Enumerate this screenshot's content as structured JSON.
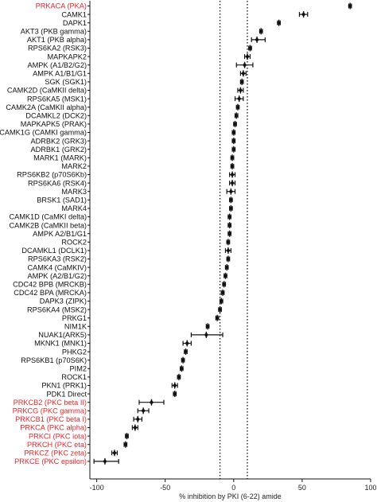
{
  "chart_data": {
    "type": "scatter",
    "title": "",
    "xlabel": "% inhibition by PKI (6-22) amide",
    "ylabel": "",
    "xlim": [
      -105,
      100
    ],
    "xticks": [
      -100,
      -50,
      0,
      50,
      100
    ],
    "xtick_labels": [
      "-100",
      "-50",
      "0",
      "50",
      "100"
    ],
    "reference_lines_x": [
      -10,
      10
    ],
    "reference_line_style": "dotted",
    "highlight_color": "#e8262b",
    "default_color": "#111111",
    "points": [
      {
        "label": "PRKACA (PKA)",
        "value": 85,
        "low": 84,
        "high": 86,
        "highlight": true
      },
      {
        "label": "CAMK1",
        "value": 51,
        "low": 48,
        "high": 54,
        "highlight": false
      },
      {
        "label": "DAPK1",
        "value": 33,
        "low": 32,
        "high": 34,
        "highlight": false
      },
      {
        "label": "AKT3 (PKB gamma)",
        "value": 20,
        "low": 19,
        "high": 21,
        "highlight": false
      },
      {
        "label": "AKT1 (PKB alpha)",
        "value": 17,
        "low": 13,
        "high": 23,
        "highlight": false
      },
      {
        "label": "RPS6KA2 (RSK3)",
        "value": 12,
        "low": 11,
        "high": 13,
        "highlight": false
      },
      {
        "label": "MAPKAPK2",
        "value": 10,
        "low": 8,
        "high": 12,
        "highlight": false
      },
      {
        "label": "AMPK (A1/B2/G2)",
        "value": 8,
        "low": 2,
        "high": 14,
        "highlight": false
      },
      {
        "label": "AMPK A1/B1/G1",
        "value": 7,
        "low": 5,
        "high": 9,
        "highlight": false
      },
      {
        "label": "SGK (SGK1)",
        "value": 6,
        "low": 5,
        "high": 7,
        "highlight": false
      },
      {
        "label": "CAMK2D (CaMKII delta)",
        "value": 5,
        "low": 3,
        "high": 7,
        "highlight": false
      },
      {
        "label": "RPS6KA5 (MSK1)",
        "value": 4,
        "low": 1,
        "high": 7,
        "highlight": false
      },
      {
        "label": "CAMK2A (CaMKII alpha)",
        "value": 3,
        "low": 2,
        "high": 4,
        "highlight": false
      },
      {
        "label": "DCAMKL2 (DCK2)",
        "value": 2,
        "low": 1,
        "high": 3,
        "highlight": false
      },
      {
        "label": "MAPKAPK5 (PRAK)",
        "value": 1,
        "low": 0,
        "high": 2,
        "highlight": false
      },
      {
        "label": "CAMK1G (CAMKI gamma)",
        "value": 0,
        "low": -1,
        "high": 1,
        "highlight": false
      },
      {
        "label": "ADRBK2 (GRK3)",
        "value": 0,
        "low": -1,
        "high": 1,
        "highlight": false
      },
      {
        "label": "ADRBK1 (GRK2)",
        "value": 0,
        "low": -1,
        "high": 1,
        "highlight": false
      },
      {
        "label": "MARK1 (MARK)",
        "value": -1,
        "low": -2,
        "high": 0,
        "highlight": false
      },
      {
        "label": "MARK2",
        "value": -1,
        "low": -2,
        "high": 0,
        "highlight": false
      },
      {
        "label": "RPS6KB2 (p70S6Kb)",
        "value": -1,
        "low": -3,
        "high": 1,
        "highlight": false
      },
      {
        "label": "RPS6KA6 (RSK4)",
        "value": -1,
        "low": -3,
        "high": 1,
        "highlight": false
      },
      {
        "label": "MARK3",
        "value": -2,
        "low": -5,
        "high": 1,
        "highlight": false
      },
      {
        "label": "BRSK1 (SAD1)",
        "value": -2,
        "low": -3,
        "high": -1,
        "highlight": false
      },
      {
        "label": "MARK4",
        "value": -2,
        "low": -3,
        "high": -1,
        "highlight": false
      },
      {
        "label": "CAMK1D (CaMKI delta)",
        "value": -3,
        "low": -4,
        "high": -2,
        "highlight": false
      },
      {
        "label": "CAMK2B (CaMKII beta)",
        "value": -3,
        "low": -4,
        "high": -2,
        "highlight": false
      },
      {
        "label": "AMPK A2/B1/G1",
        "value": -3,
        "low": -4,
        "high": -2,
        "highlight": false
      },
      {
        "label": "ROCK2",
        "value": -4,
        "low": -5,
        "high": -3,
        "highlight": false
      },
      {
        "label": "DCAMKL1 (DCLK1)",
        "value": -4,
        "low": -6,
        "high": -2,
        "highlight": false
      },
      {
        "label": "RPS6KA3 (RSK2)",
        "value": -4,
        "low": -5,
        "high": -3,
        "highlight": false
      },
      {
        "label": "CAMK4 (CaMKIV)",
        "value": -5,
        "low": -6,
        "high": -4,
        "highlight": false
      },
      {
        "label": "AMPK (A2/B1/G2)",
        "value": -6,
        "low": -7,
        "high": -5,
        "highlight": false
      },
      {
        "label": "CDC42 BPB (MRCKB)",
        "value": -7,
        "low": -8,
        "high": -6,
        "highlight": false
      },
      {
        "label": "CDC42 BPA (MRCKA)",
        "value": -8,
        "low": -9,
        "high": -7,
        "highlight": false
      },
      {
        "label": "DAPK3 (ZIPK)",
        "value": -9,
        "low": -10,
        "high": -8,
        "highlight": false
      },
      {
        "label": "RPS6KA4 (MSK2)",
        "value": -10,
        "low": -11,
        "high": -9,
        "highlight": false
      },
      {
        "label": "PRKG1",
        "value": -12,
        "low": -13,
        "high": -11,
        "highlight": false
      },
      {
        "label": "NIM1K",
        "value": -19,
        "low": -20,
        "high": -18,
        "highlight": false
      },
      {
        "label": "NUAK1(ARK5)",
        "value": -20,
        "low": -31,
        "high": -8,
        "highlight": false
      },
      {
        "label": "MKNK1 (MNK1)",
        "value": -34,
        "low": -37,
        "high": -31,
        "highlight": false
      },
      {
        "label": "PHKG2",
        "value": -35,
        "low": -36,
        "high": -34,
        "highlight": false
      },
      {
        "label": "RPS6KB1 (p70S6K)",
        "value": -37,
        "low": -38,
        "high": -36,
        "highlight": false
      },
      {
        "label": "PIM2",
        "value": -38,
        "low": -39,
        "high": -37,
        "highlight": false
      },
      {
        "label": "ROCK1",
        "value": -40,
        "low": -41,
        "high": -39,
        "highlight": false
      },
      {
        "label": "PKN1 (PRK1)",
        "value": -43,
        "low": -45,
        "high": -41,
        "highlight": false
      },
      {
        "label": "PDK1 Direct",
        "value": -43,
        "low": -44,
        "high": -42,
        "highlight": false
      },
      {
        "label": "PRKCB2 (PKC beta II)",
        "value": -60,
        "low": -69,
        "high": -51,
        "highlight": true
      },
      {
        "label": "PRKCG (PKC gamma)",
        "value": -66,
        "low": -70,
        "high": -62,
        "highlight": true
      },
      {
        "label": "PRKCB1 (PKC beta I)",
        "value": -70,
        "low": -73,
        "high": -67,
        "highlight": true
      },
      {
        "label": "PRKCA (PKC alpha)",
        "value": -72,
        "low": -74,
        "high": -70,
        "highlight": true
      },
      {
        "label": "PRKCI (PKC iota)",
        "value": -78,
        "low": -79,
        "high": -77,
        "highlight": true
      },
      {
        "label": "PRKCH (PKC eta)",
        "value": -79,
        "low": -80,
        "high": -78,
        "highlight": true
      },
      {
        "label": "PRKCZ (PKC zeta)",
        "value": -87,
        "low": -89,
        "high": -85,
        "highlight": true
      },
      {
        "label": "PRKCE (PKC epsilon)",
        "value": -94,
        "low": -102,
        "high": -84,
        "highlight": true
      }
    ]
  }
}
